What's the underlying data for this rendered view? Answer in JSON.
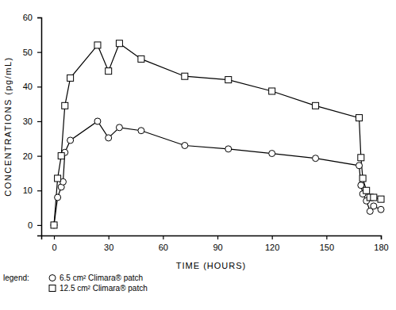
{
  "chart_data": {
    "type": "line",
    "x_label": "TIME (HOURS)",
    "y_label": "CONCENTRATIONS (pg/mL)",
    "annotations": [
      "legend:"
    ],
    "legend": "bottom-left",
    "grid": false,
    "xlim": [
      -7,
      180
    ],
    "xticks": [
      0,
      30,
      60,
      90,
      120,
      150,
      180
    ],
    "ylim": [
      -3,
      60
    ],
    "yticks": [
      0,
      10,
      20,
      30,
      40,
      50,
      60
    ],
    "series": [
      {
        "name": "6.5 cm² Climara® patch",
        "color": "#000000",
        "marker": "circle",
        "x": [
          0,
          2,
          4,
          5,
          6,
          9,
          24,
          30,
          36,
          48,
          72,
          96,
          120,
          144,
          168,
          169,
          170,
          172,
          174,
          176,
          180
        ],
        "values": [
          0,
          8,
          11,
          12.5,
          21,
          24.5,
          30,
          25.2,
          28.2,
          27.3,
          23,
          22,
          20.7,
          19.3,
          17.2,
          11.5,
          9,
          7,
          4,
          5.5,
          4.5
        ]
      },
      {
        "name": "12.5 cm² Climara® patch",
        "color": "#000000",
        "marker": "square",
        "x": [
          0,
          2,
          4,
          6,
          9,
          24,
          30,
          36,
          48,
          72,
          96,
          120,
          144,
          168,
          169,
          170,
          172,
          174,
          176,
          180
        ],
        "values": [
          0,
          13.5,
          20,
          34.5,
          42.5,
          52,
          44.5,
          52.5,
          48,
          43,
          42,
          38.7,
          34.5,
          31,
          19.5,
          13.5,
          10,
          8,
          8,
          7.5
        ]
      }
    ]
  }
}
